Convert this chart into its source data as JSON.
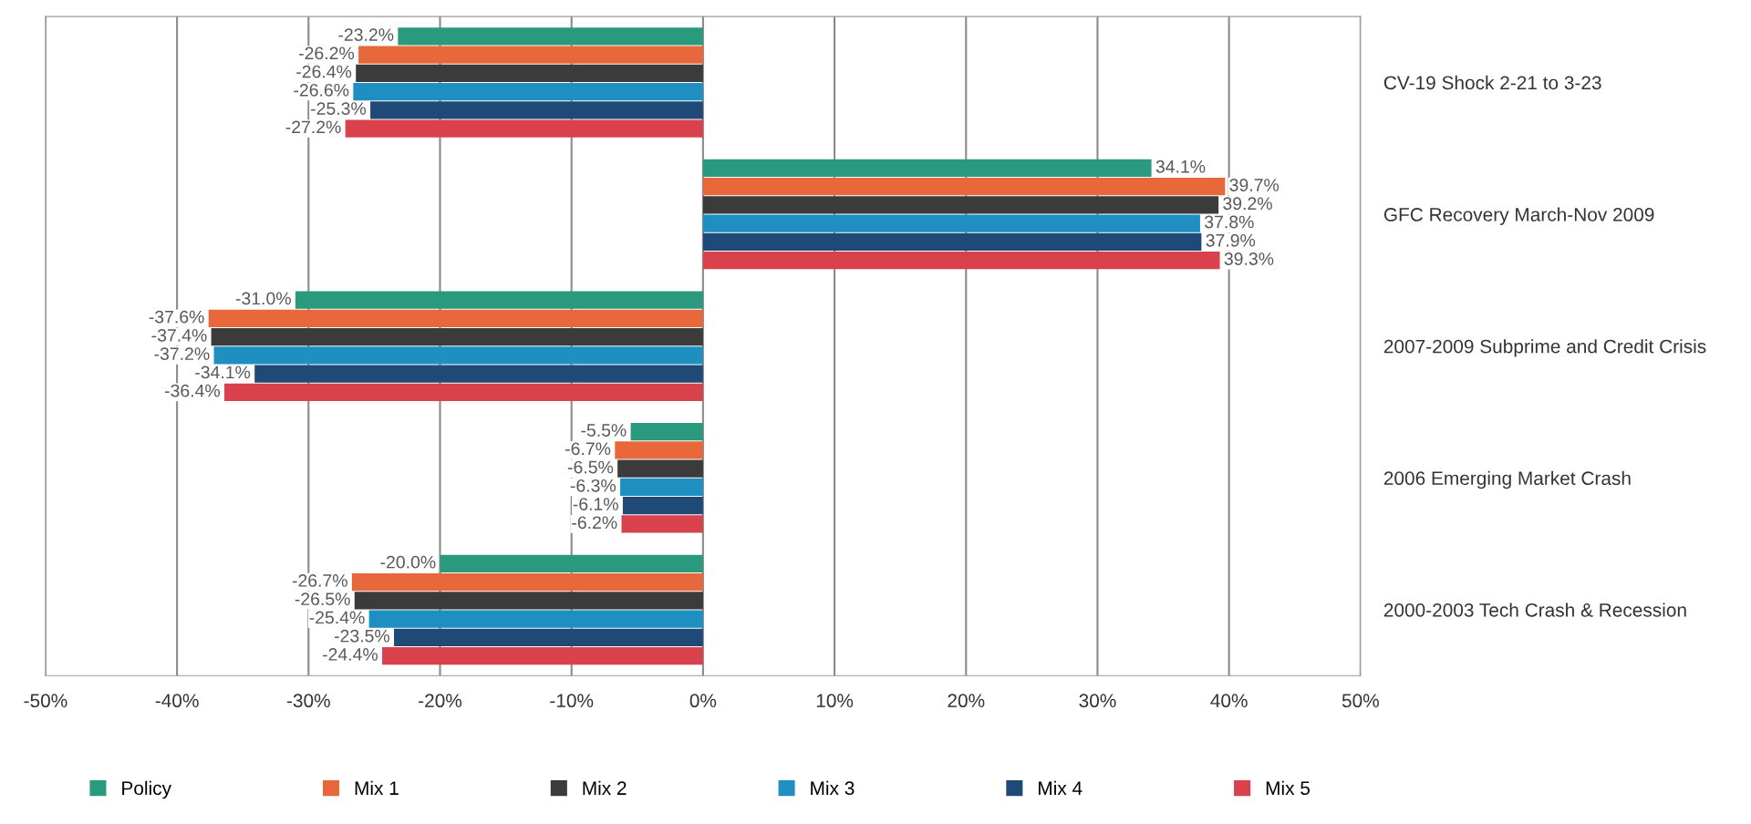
{
  "chart_data": {
    "type": "bar",
    "orientation": "horizontal",
    "categories": [
      "CV-19 Shock 2-21 to 3-23",
      "GFC Recovery March-Nov 2009",
      "2007-2009 Subprime and Credit Crisis",
      "2006 Emerging Market Crash",
      "2000-2003 Tech Crash & Recession"
    ],
    "series": [
      {
        "name": "Policy",
        "color": "#2a9a7e",
        "values": [
          -23.2,
          34.1,
          -31.0,
          -5.5,
          -20.0
        ],
        "value_labels": [
          "-23.2%",
          "34.1%",
          "-31.0%",
          "-5.5%",
          "-20.0%"
        ]
      },
      {
        "name": "Mix 1",
        "color": "#e8683c",
        "values": [
          -26.2,
          39.7,
          -37.6,
          -6.7,
          -26.7
        ],
        "value_labels": [
          "-26.2%",
          "39.7%",
          "-37.6%",
          "-6.7%",
          "-26.7%"
        ]
      },
      {
        "name": "Mix 2",
        "color": "#3b3b3b",
        "values": [
          -26.4,
          39.2,
          -37.4,
          -6.5,
          -26.5
        ],
        "value_labels": [
          "-26.4%",
          "39.2%",
          "-37.4%",
          "-6.5%",
          "-26.5%"
        ]
      },
      {
        "name": "Mix 3",
        "color": "#1f8fc2",
        "values": [
          -26.6,
          37.8,
          -37.2,
          -6.3,
          -25.4
        ],
        "value_labels": [
          "-26.6%",
          "37.8%",
          "-37.2%",
          "-6.3%",
          "-25.4%"
        ]
      },
      {
        "name": "Mix 4",
        "color": "#1f4a78",
        "values": [
          -25.3,
          37.9,
          -34.1,
          -6.1,
          -23.5
        ],
        "value_labels": [
          "-25.3%",
          "37.9%",
          "-34.1%",
          "-6.1%",
          "-23.5%"
        ]
      },
      {
        "name": "Mix 5",
        "color": "#d9414c",
        "values": [
          -27.2,
          39.3,
          -36.4,
          -6.2,
          -24.4
        ],
        "value_labels": [
          "-27.2%",
          "39.3%",
          "-36.4%",
          "-6.2%",
          "-24.4%"
        ]
      }
    ],
    "xlim": [
      -50,
      50
    ],
    "xticks": [
      {
        "value": -50,
        "label": "-50%"
      },
      {
        "value": -40,
        "label": "-40%"
      },
      {
        "value": -30,
        "label": "-30%"
      },
      {
        "value": -20,
        "label": "-20%"
      },
      {
        "value": -10,
        "label": "-10%"
      },
      {
        "value": 0,
        "label": "0%"
      },
      {
        "value": 10,
        "label": "10%"
      },
      {
        "value": 20,
        "label": "20%"
      },
      {
        "value": 30,
        "label": "30%"
      },
      {
        "value": 40,
        "label": "40%"
      },
      {
        "value": 50,
        "label": "50%"
      }
    ],
    "grid": "x",
    "legend": "bottom"
  }
}
